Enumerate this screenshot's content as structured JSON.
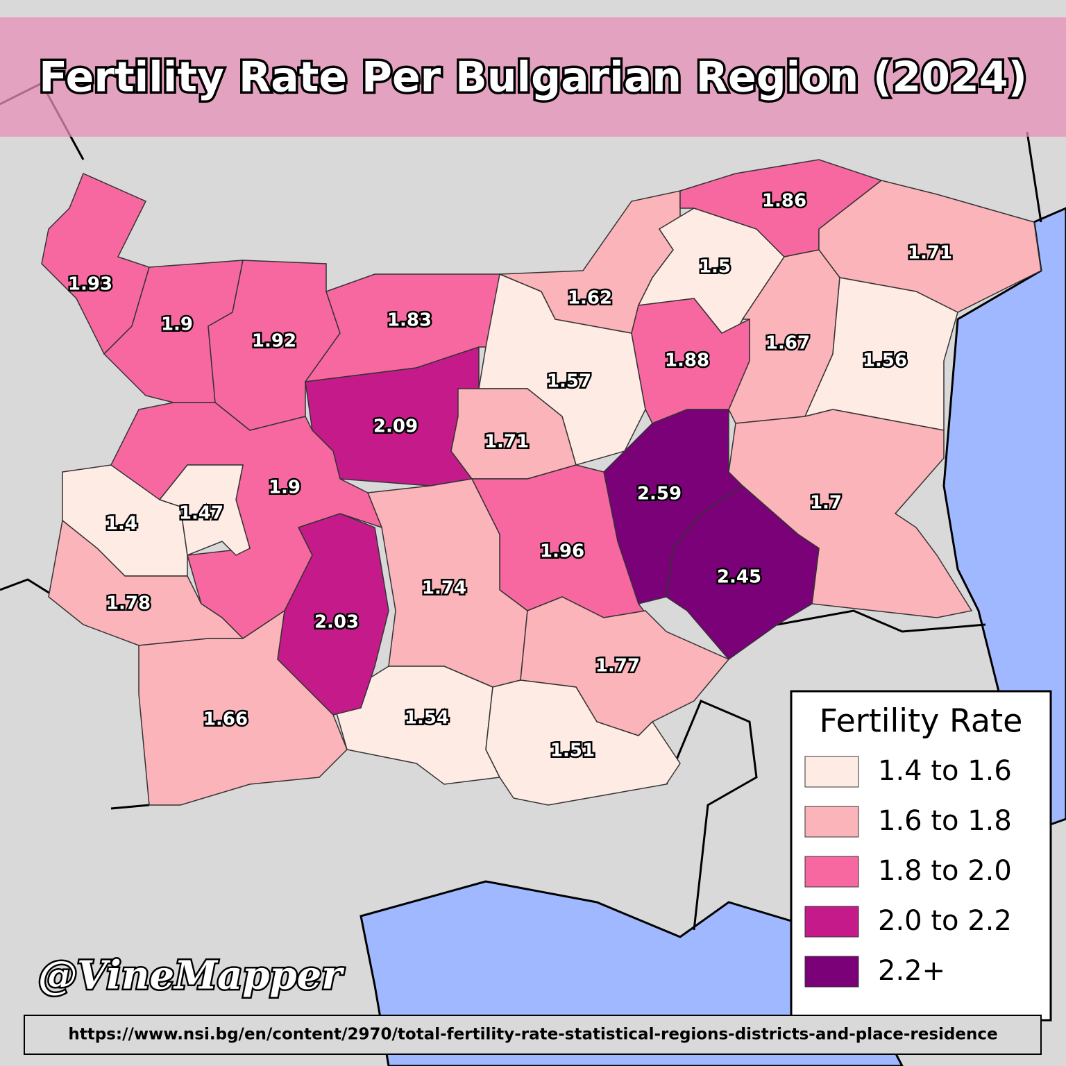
{
  "title": "Fertility Rate Per Bulgarian Region (2024)",
  "regions": [
    {
      "value": 1.93,
      "color": "#f768a1"
    },
    {
      "value": 1.9,
      "color": "#f768a1"
    },
    {
      "value": 1.92,
      "color": "#f768a1"
    },
    {
      "value": 1.83,
      "color": "#f768a1"
    },
    {
      "value": 1.57,
      "color": "#fdebe4"
    },
    {
      "value": 1.62,
      "color": "#fbb4b9"
    },
    {
      "value": 1.5,
      "color": "#fdebe4"
    },
    {
      "value": 1.86,
      "color": "#f768a1"
    },
    {
      "value": 1.71,
      "color": "#fbb4b9"
    },
    {
      "value": 1.67,
      "color": "#fbb4b9"
    },
    {
      "value": 1.56,
      "color": "#fdebe4"
    },
    {
      "value": 1.88,
      "color": "#f768a1"
    },
    {
      "value": 2.09,
      "color": "#c51b8a"
    },
    {
      "value": 1.71,
      "color": "#fbb4b9"
    },
    {
      "value": 2.59,
      "color": "#7a0177"
    },
    {
      "value": 1.7,
      "color": "#fbb4b9"
    },
    {
      "value": 2.45,
      "color": "#7a0177"
    },
    {
      "value": 1.96,
      "color": "#f768a1"
    },
    {
      "value": 1.74,
      "color": "#fbb4b9"
    },
    {
      "value": 1.77,
      "color": "#fbb4b9"
    },
    {
      "value": 1.54,
      "color": "#fdebe4"
    },
    {
      "value": 1.51,
      "color": "#fdebe4"
    },
    {
      "value": 2.03,
      "color": "#c51b8a"
    },
    {
      "value": 1.9,
      "color": "#f768a1"
    },
    {
      "value": 1.4,
      "color": "#fdebe4"
    },
    {
      "value": 1.47,
      "color": "#fdebe4"
    },
    {
      "value": 1.78,
      "color": "#fbb4b9"
    },
    {
      "value": 1.66,
      "color": "#fbb4b9"
    }
  ],
  "legend": {
    "title": "Fertility Rate",
    "items": [
      {
        "label": "1.4 to 1.6",
        "color": "#fdebe4"
      },
      {
        "label": "1.6 to 1.8",
        "color": "#fbb4b9"
      },
      {
        "label": "1.8 to 2.0",
        "color": "#f768a1"
      },
      {
        "label": "2.0 to 2.2",
        "color": "#c51b8a"
      },
      {
        "label": "2.2+",
        "color": "#7a0177"
      }
    ]
  },
  "watermark": "@VineMapper",
  "source": "https://www.nsi.bg/en/content/2970/total-fertility-rate-statistical-regions-districts-and-place-residence"
}
